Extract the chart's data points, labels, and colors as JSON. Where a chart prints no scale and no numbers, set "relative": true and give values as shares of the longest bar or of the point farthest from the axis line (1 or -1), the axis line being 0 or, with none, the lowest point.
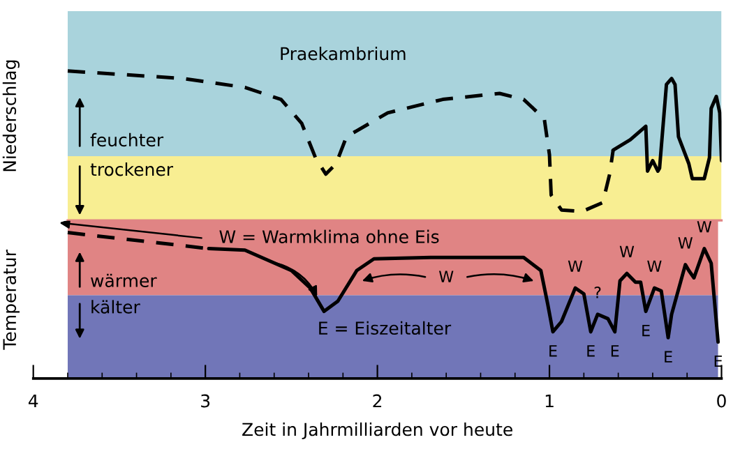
{
  "chart_data": [
    {
      "type": "line",
      "relative": true,
      "ylabel": "Niederschlag",
      "xlim": [
        4,
        0
      ],
      "tick_labels": false,
      "series": [
        {
          "color": "#000000",
          "line_style": "dashed",
          "x": [
            3.8,
            3.13,
            2.77,
            2.56,
            2.44,
            2.36,
            2.3,
            2.24,
            2.18,
            1.94,
            1.62,
            1.29,
            1.15,
            1.03,
            1.0,
            0.99,
            0.93,
            0.81,
            0.69,
            0.65,
            0.63
          ],
          "values": [
            1.0,
            0.95,
            0.89,
            0.81,
            0.65,
            0.42,
            0.31,
            0.38,
            0.56,
            0.72,
            0.81,
            0.85,
            0.81,
            0.68,
            0.44,
            0.17,
            0.07,
            0.06,
            0.12,
            0.31,
            0.47
          ]
        },
        {
          "color": "#000000",
          "line_style": "solid",
          "x": [
            0.63,
            0.53,
            0.44,
            0.43,
            0.4,
            0.37,
            0.36,
            0.32,
            0.29,
            0.27,
            0.25,
            0.19,
            0.17,
            0.1,
            0.07,
            0.06,
            0.03,
            0.01,
            0.0
          ],
          "values": [
            0.47,
            0.54,
            0.63,
            0.33,
            0.4,
            0.33,
            0.35,
            0.91,
            0.95,
            0.91,
            0.56,
            0.38,
            0.28,
            0.28,
            0.42,
            0.75,
            0.83,
            0.72,
            0.4
          ]
        }
      ],
      "bands": [
        {
          "axis": "y",
          "from": 0.43,
          "to": 1.4,
          "label": "feuchter",
          "color": "#a9d3dc"
        },
        {
          "axis": "y",
          "from": 0,
          "to": 0.43,
          "label": "trockener",
          "color": "#f8ee92"
        }
      ],
      "annotations": [
        "Praekambrium"
      ]
    },
    {
      "type": "line",
      "relative": true,
      "ylabel": "Temperatur",
      "xlabel": "Zeit in Jahrmilliarden vor heute",
      "xlim": [
        4,
        0
      ],
      "xticks": [
        4,
        3,
        2,
        1,
        0
      ],
      "series": [
        {
          "color": "#000000",
          "line_style": "dashed",
          "x": [
            3.8,
            2.98
          ],
          "values": [
            1.0,
            0.89
          ]
        },
        {
          "color": "#000000",
          "line_style": "solid",
          "x": [
            2.98,
            2.77,
            2.5,
            2.39,
            2.31,
            2.23,
            2.12,
            2.02,
            1.69,
            1.15,
            1.05,
            1.01,
            0.98,
            0.93,
            0.85,
            0.8,
            0.76,
            0.72,
            0.66,
            0.62,
            0.59,
            0.55,
            0.5,
            0.47,
            0.44,
            0.39,
            0.35,
            0.31,
            0.29,
            0.21,
            0.19,
            0.16,
            0.1,
            0.06,
            0.02
          ],
          "values": [
            0.89,
            0.88,
            0.74,
            0.62,
            0.46,
            0.53,
            0.74,
            0.82,
            0.83,
            0.83,
            0.74,
            0.51,
            0.32,
            0.39,
            0.62,
            0.58,
            0.32,
            0.44,
            0.41,
            0.32,
            0.67,
            0.72,
            0.66,
            0.66,
            0.46,
            0.62,
            0.6,
            0.28,
            0.44,
            0.78,
            0.74,
            0.69,
            0.89,
            0.79,
            0.25
          ]
        }
      ],
      "bands": [
        {
          "axis": "y",
          "from": 0.57,
          "to": 1.08,
          "label": "wärmer",
          "color": "#e08484"
        },
        {
          "axis": "y",
          "from": 0,
          "to": 0.57,
          "label": "kälter",
          "color": "#7176b8"
        }
      ],
      "annotations": [
        "W = Warmklima ohne Eis",
        "E = Eiszeitalter",
        {
          "text": "W",
          "x": 1.6,
          "y": 0.83
        },
        {
          "text": "W",
          "x": 0.85,
          "y": 0.62
        },
        {
          "text": "W",
          "x": 0.55,
          "y": 0.72
        },
        {
          "text": "W",
          "x": 0.39,
          "y": 0.62
        },
        {
          "text": "W",
          "x": 0.21,
          "y": 0.78
        },
        {
          "text": "W",
          "x": 0.1,
          "y": 0.89
        },
        {
          "text": "?",
          "x": 0.72,
          "y": 0.44
        },
        {
          "text": "E",
          "x": 0.98,
          "y": 0.32
        },
        {
          "text": "E",
          "x": 0.76,
          "y": 0.32
        },
        {
          "text": "E",
          "x": 0.62,
          "y": 0.32
        },
        {
          "text": "E",
          "x": 0.44,
          "y": 0.46
        },
        {
          "text": "E",
          "x": 0.31,
          "y": 0.28
        },
        {
          "text": "E",
          "x": 0.02,
          "y": 0.25
        }
      ]
    }
  ]
}
